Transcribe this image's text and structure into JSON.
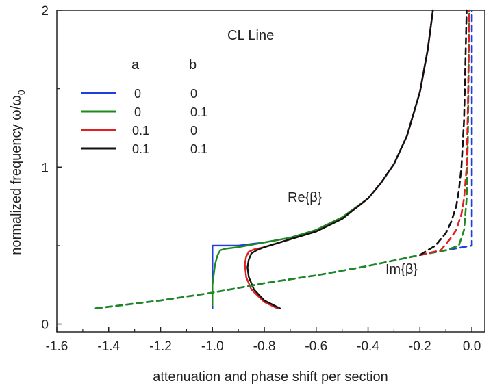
{
  "chart_data": {
    "type": "line",
    "title": "CL Line",
    "xlabel": "attenuation and phase shift per section",
    "ylabel": "normalized frequency ω/ω₀",
    "ylabel_main": "normalized frequency ",
    "ylabel_omega": "ω/ω",
    "ylabel_sub": "0",
    "xlim": [
      -1.6,
      0.05
    ],
    "ylim": [
      -0.05,
      2.0
    ],
    "x_ticks": [
      -1.6,
      -1.4,
      -1.2,
      -1.0,
      -0.8,
      -0.6,
      -0.4,
      -0.2,
      0.0
    ],
    "x_tick_labels": [
      "-1.6",
      "-1.4",
      "-1.2",
      "-1.0",
      "-0.8",
      "-0.6",
      "-0.4",
      "-0.2",
      "0.0"
    ],
    "y_ticks": [
      0,
      1,
      2
    ],
    "y_tick_labels": [
      "0",
      "1",
      "2"
    ],
    "legend": {
      "headers": [
        "a",
        "b"
      ],
      "entries": [
        {
          "name": "a=0, b=0",
          "a": "0",
          "b": "0",
          "color": "#1f3fdf"
        },
        {
          "name": "a=0, b=0.1",
          "a": "0",
          "b": "0.1",
          "color": "#1e8a1e"
        },
        {
          "name": "a=0.1, b=0",
          "a": "0.1",
          "b": "0",
          "color": "#e02020"
        },
        {
          "name": "a=0.1, b=0.1",
          "a": "0.1",
          "b": "0.1",
          "color": "#111111"
        }
      ]
    },
    "annotations": [
      {
        "text": "Re{β}",
        "x": -0.6,
        "y": 0.78
      },
      {
        "text": "Im{β}",
        "x": -0.28,
        "y": 0.32
      }
    ],
    "series": [
      {
        "name": "Re{β} a=0 b=0",
        "color": "#1f3fdf",
        "dash": false,
        "x": [
          -1.0,
          -1.0,
          -1.0,
          -0.99,
          -0.97,
          -0.95,
          -0.9,
          -0.85,
          -0.8,
          -0.7,
          -0.6,
          -0.5,
          -0.4,
          -0.35,
          -0.3,
          -0.25,
          -0.2,
          -0.17,
          -0.15
        ],
        "y": [
          0.1,
          0.25,
          0.5,
          0.5,
          0.5,
          0.5,
          0.5,
          0.51,
          0.52,
          0.55,
          0.6,
          0.68,
          0.8,
          0.9,
          1.02,
          1.2,
          1.48,
          1.75,
          2.0
        ]
      },
      {
        "name": "Re{β} a=0 b=0.1",
        "color": "#1e8a1e",
        "dash": false,
        "x": [
          -1.0,
          -1.0,
          -0.99,
          -0.98,
          -0.97,
          -0.95,
          -0.9,
          -0.85,
          -0.8,
          -0.7,
          -0.6,
          -0.5,
          -0.4,
          -0.35,
          -0.3,
          -0.25,
          -0.2,
          -0.17,
          -0.15
        ],
        "y": [
          0.12,
          0.25,
          0.38,
          0.44,
          0.47,
          0.48,
          0.49,
          0.505,
          0.52,
          0.55,
          0.6,
          0.68,
          0.8,
          0.9,
          1.02,
          1.2,
          1.48,
          1.75,
          2.0
        ]
      },
      {
        "name": "Re{β} a=0.1 b=0",
        "color": "#e02020",
        "dash": false,
        "x": [
          -0.75,
          -0.8,
          -0.85,
          -0.87,
          -0.875,
          -0.87,
          -0.86,
          -0.84,
          -0.8,
          -0.7,
          -0.6,
          -0.5,
          -0.4,
          -0.35,
          -0.3,
          -0.25,
          -0.2,
          -0.17,
          -0.15
        ],
        "y": [
          0.1,
          0.14,
          0.22,
          0.3,
          0.38,
          0.43,
          0.46,
          0.475,
          0.49,
          0.54,
          0.59,
          0.67,
          0.8,
          0.9,
          1.02,
          1.2,
          1.48,
          1.75,
          2.0
        ]
      },
      {
        "name": "Re{β} a=0.1 b=0.1",
        "color": "#111111",
        "dash": false,
        "x": [
          -0.74,
          -0.8,
          -0.84,
          -0.86,
          -0.865,
          -0.86,
          -0.85,
          -0.83,
          -0.8,
          -0.7,
          -0.6,
          -0.5,
          -0.4,
          -0.35,
          -0.3,
          -0.25,
          -0.2,
          -0.17,
          -0.15
        ],
        "y": [
          0.1,
          0.15,
          0.22,
          0.3,
          0.36,
          0.41,
          0.45,
          0.47,
          0.49,
          0.54,
          0.59,
          0.67,
          0.8,
          0.9,
          1.02,
          1.2,
          1.48,
          1.75,
          2.0
        ]
      },
      {
        "name": "Im{β} a=0 b=0",
        "color": "#1f3fdf",
        "dash": true,
        "x": [
          -1.45,
          -1.2,
          -1.0,
          -0.8,
          -0.6,
          -0.4,
          -0.2,
          -0.05,
          0.0,
          0.0,
          0.0
        ],
        "y": [
          0.1,
          0.15,
          0.2,
          0.26,
          0.31,
          0.37,
          0.44,
          0.485,
          0.5,
          1.2,
          2.0
        ]
      },
      {
        "name": "Im{β} a=0 b=0.1",
        "color": "#1e8a1e",
        "dash": true,
        "x": [
          -1.45,
          -1.2,
          -1.0,
          -0.8,
          -0.6,
          -0.4,
          -0.2,
          -0.1,
          -0.05,
          -0.03,
          -0.02,
          -0.015,
          -0.01
        ],
        "y": [
          0.1,
          0.15,
          0.2,
          0.26,
          0.31,
          0.37,
          0.44,
          0.47,
          0.5,
          0.6,
          0.8,
          1.2,
          2.0
        ]
      },
      {
        "name": "Im{β} a=0.1 b=0",
        "color": "#e02020",
        "dash": true,
        "x": [
          -0.2,
          -0.12,
          -0.08,
          -0.06,
          -0.04,
          -0.03,
          -0.02,
          -0.015,
          -0.01
        ],
        "y": [
          0.44,
          0.47,
          0.55,
          0.6,
          0.7,
          0.8,
          1.0,
          1.4,
          2.0
        ]
      },
      {
        "name": "Im{β} a=0.1 b=0.1",
        "color": "#111111",
        "dash": true,
        "x": [
          -0.2,
          -0.14,
          -0.1,
          -0.08,
          -0.06,
          -0.05,
          -0.04,
          -0.03,
          -0.02
        ],
        "y": [
          0.44,
          0.5,
          0.58,
          0.65,
          0.75,
          0.85,
          1.0,
          1.3,
          2.0
        ]
      }
    ]
  }
}
